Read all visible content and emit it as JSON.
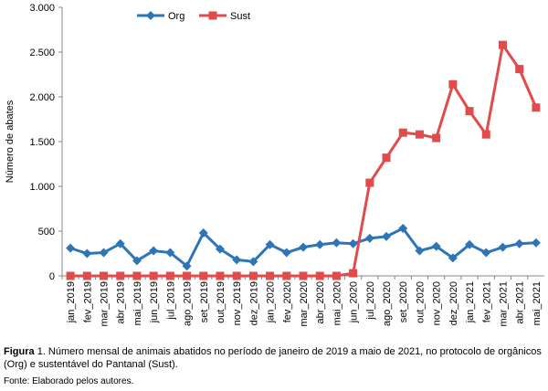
{
  "chart_data": {
    "type": "line",
    "y_label": "Número de abates",
    "categories": [
      "jan_2019",
      "fev_2019",
      "mar_2019",
      "abr_2019",
      "mai_2019",
      "jun_2019",
      "jul_2019",
      "ago_2019",
      "set_2019",
      "out_2019",
      "nov_2019",
      "dez_2019",
      "jan_2020",
      "fev_2020",
      "mar_2020",
      "abr_2020",
      "mai_2020",
      "jun_2020",
      "jul_2020",
      "ago_2020",
      "set_2020",
      "out_2020",
      "nov_2020",
      "dez_2020",
      "jan_2021",
      "fev_2021",
      "mar_2021",
      "abr_2021",
      "mai_2021"
    ],
    "series": [
      {
        "name": "Org",
        "color": "#2e75b6",
        "marker": "diamond",
        "values": [
          310,
          250,
          260,
          360,
          170,
          280,
          260,
          110,
          480,
          300,
          180,
          160,
          350,
          260,
          320,
          350,
          370,
          360,
          420,
          440,
          530,
          280,
          330,
          200,
          350,
          260,
          320,
          360,
          370
        ]
      },
      {
        "name": "Sust",
        "color": "#e04b4b",
        "marker": "square",
        "values": [
          0,
          0,
          0,
          0,
          0,
          0,
          0,
          0,
          0,
          0,
          0,
          0,
          0,
          0,
          0,
          0,
          0,
          30,
          1040,
          1320,
          1600,
          1580,
          1540,
          2140,
          1840,
          1580,
          2580,
          2310,
          1880
        ]
      }
    ],
    "ylim": [
      0,
      3000
    ],
    "yticks": [
      0,
      {
        "value": 500,
        "label": "500"
      },
      {
        "value": 1000,
        "label": "1.000"
      },
      {
        "value": 1500,
        "label": "1.500"
      },
      {
        "value": 2000,
        "label": "2.000"
      },
      {
        "value": 2500,
        "label": "2.500"
      },
      {
        "value": 3000,
        "label": "3.000"
      }
    ],
    "legend": "top"
  },
  "caption_label": "Figura",
  "caption": "1. Número mensal de animais abatidos no período de janeiro de 2019 a maio de 2021, no protocolo de orgânicos (Org) e sustentável do Pantanal (Sust).",
  "source": "Fonte: Elaborado pelos autores."
}
